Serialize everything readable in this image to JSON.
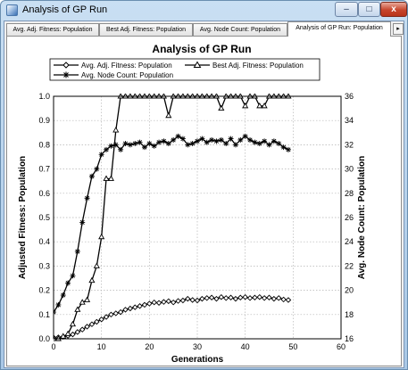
{
  "window": {
    "title": "Analysis of GP Run"
  },
  "window_controls": {
    "minimize": "–",
    "maximize": "□",
    "close": "x"
  },
  "tabs": [
    {
      "label": "Avg. Adj. Fitness: Population"
    },
    {
      "label": "Best Adj. Fitness: Population"
    },
    {
      "label": "Avg. Node Count: Population"
    },
    {
      "label": "Analysis of GP Run: Population"
    }
  ],
  "tab_scroll_icon": "▸",
  "colors": {
    "window_frame": "#a9c8e6",
    "series": "#000000",
    "axes": "#000000"
  },
  "chart_data": {
    "type": "line",
    "title": "Analysis of GP Run",
    "xlabel": "Generations",
    "ylabel": "Adjusted Fitness:  Population",
    "y2label": "Avg. Node Count: Population",
    "xlim": [
      0,
      60
    ],
    "ylim": [
      0,
      1
    ],
    "y2lim": [
      16,
      36
    ],
    "xticks": [
      "0",
      "10",
      "20",
      "30",
      "40",
      "50",
      "60"
    ],
    "yticks": [
      "0.0",
      "0.1",
      "0.2",
      "0.3",
      "0.4",
      "0.5",
      "0.6",
      "0.7",
      "0.8",
      "0.9",
      "1.0"
    ],
    "y2ticks": [
      "16",
      "18",
      "20",
      "22",
      "24",
      "26",
      "28",
      "30",
      "32",
      "34",
      "36"
    ],
    "grid": true,
    "legend": {
      "placement": "top",
      "entries": [
        "Avg. Adj. Fitness: Population",
        "Best Adj. Fitness: Population",
        "Avg. Node Count: Population"
      ]
    },
    "series": [
      {
        "name": "Avg. Adj. Fitness: Population",
        "axis": "left",
        "marker": "diamond",
        "x": [
          0,
          1,
          2,
          3,
          4,
          5,
          6,
          7,
          8,
          9,
          10,
          11,
          12,
          13,
          14,
          15,
          16,
          17,
          18,
          19,
          20,
          21,
          22,
          23,
          24,
          25,
          26,
          27,
          28,
          29,
          30,
          31,
          32,
          33,
          34,
          35,
          36,
          37,
          38,
          39,
          40,
          41,
          42,
          43,
          44,
          45,
          46,
          47,
          48,
          49
        ],
        "y": [
          0.005,
          0.006,
          0.008,
          0.012,
          0.018,
          0.028,
          0.038,
          0.05,
          0.06,
          0.07,
          0.08,
          0.09,
          0.1,
          0.105,
          0.11,
          0.12,
          0.125,
          0.13,
          0.135,
          0.14,
          0.145,
          0.15,
          0.148,
          0.152,
          0.155,
          0.15,
          0.156,
          0.158,
          0.165,
          0.16,
          0.158,
          0.165,
          0.168,
          0.17,
          0.165,
          0.172,
          0.168,
          0.17,
          0.165,
          0.17,
          0.172,
          0.168,
          0.17,
          0.172,
          0.168,
          0.17,
          0.165,
          0.168,
          0.162,
          0.16
        ]
      },
      {
        "name": "Best Adj. Fitness: Population",
        "axis": "left",
        "marker": "triangle",
        "x": [
          0,
          1,
          2,
          3,
          4,
          5,
          6,
          7,
          8,
          9,
          10,
          11,
          12,
          13,
          14,
          15,
          16,
          17,
          18,
          19,
          20,
          21,
          22,
          23,
          24,
          25,
          26,
          27,
          28,
          29,
          30,
          31,
          32,
          33,
          34,
          35,
          36,
          37,
          38,
          39,
          40,
          41,
          42,
          43,
          44,
          45,
          46,
          47,
          48,
          49
        ],
        "y": [
          0.0,
          0.0,
          0.01,
          0.02,
          0.06,
          0.12,
          0.15,
          0.16,
          0.24,
          0.3,
          0.42,
          0.66,
          0.66,
          0.86,
          1.0,
          1.0,
          1.0,
          1.0,
          1.0,
          1.0,
          1.0,
          1.0,
          1.0,
          1.0,
          0.92,
          1.0,
          1.0,
          1.0,
          1.0,
          1.0,
          1.0,
          1.0,
          1.0,
          1.0,
          1.0,
          0.95,
          1.0,
          1.0,
          1.0,
          1.0,
          0.96,
          1.0,
          1.0,
          0.96,
          0.96,
          1.0,
          1.0,
          1.0,
          1.0,
          1.0
        ]
      },
      {
        "name": "Avg. Node Count: Population",
        "axis": "right",
        "marker": "star",
        "x": [
          0,
          1,
          2,
          3,
          4,
          5,
          6,
          7,
          8,
          9,
          10,
          11,
          12,
          13,
          14,
          15,
          16,
          17,
          18,
          19,
          20,
          21,
          22,
          23,
          24,
          25,
          26,
          27,
          28,
          29,
          30,
          31,
          32,
          33,
          34,
          35,
          36,
          37,
          38,
          39,
          40,
          41,
          42,
          43,
          44,
          45,
          46,
          47,
          48,
          49
        ],
        "y": [
          18.2,
          18.8,
          19.6,
          20.6,
          21.2,
          23.2,
          25.6,
          27.6,
          29.4,
          30,
          31.2,
          31.6,
          31.9,
          32,
          31.6,
          32.1,
          32.0,
          32.1,
          32.2,
          31.8,
          32.1,
          31.9,
          32.2,
          32.3,
          32.1,
          32.4,
          32.7,
          32.5,
          32.0,
          32.1,
          32.3,
          32.5,
          32.2,
          32.4,
          32.3,
          32.4,
          32.1,
          32.5,
          32.0,
          32.4,
          32.7,
          32.4,
          32.2,
          32.1,
          32.3,
          32.0,
          32.3,
          32.1,
          31.8,
          31.6
        ]
      }
    ]
  }
}
